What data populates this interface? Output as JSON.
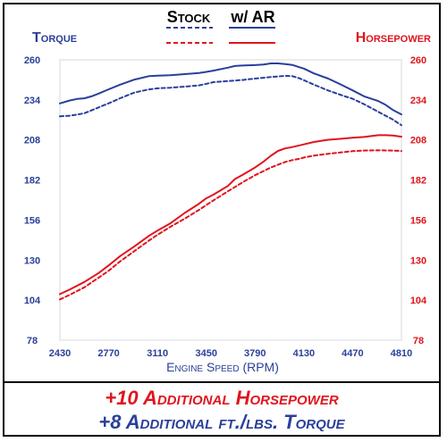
{
  "chart_data": {
    "type": "line",
    "legend": {
      "stock_label": "Stock",
      "ar_label": "w/ AR",
      "placement": "top-center"
    },
    "left_axis": {
      "label": "Torque",
      "ticks": [
        78,
        104,
        130,
        156,
        182,
        208,
        234,
        260
      ],
      "ylim": [
        78,
        260
      ],
      "color": "#2a3f9a"
    },
    "right_axis": {
      "label": "Horsepower",
      "ticks": [
        78,
        104,
        130,
        156,
        182,
        208,
        234,
        260
      ],
      "ylim": [
        78,
        260
      ],
      "color": "#e0141e"
    },
    "x_axis": {
      "label": "Engine Speed (RPM)",
      "ticks": [
        2430,
        2770,
        3110,
        3450,
        3790,
        4130,
        4470,
        4810
      ],
      "xlim": [
        2430,
        4810
      ],
      "color": "#2a3f9a"
    },
    "grid": false,
    "series": [
      {
        "name": "Torque w/ AR",
        "style": "solid",
        "color": "#2a3f9a",
        "x": [
          2430,
          2500,
          2550,
          2600,
          2650,
          2700,
          2770,
          2850,
          2950,
          3050,
          3110,
          3200,
          3300,
          3400,
          3450,
          3500,
          3600,
          3650,
          3700,
          3790,
          3850,
          3900,
          3950,
          4000,
          4050,
          4100,
          4130,
          4200,
          4300,
          4400,
          4470,
          4550,
          4650,
          4700,
          4750,
          4810
        ],
        "values": [
          231.7,
          233.6,
          234.6,
          235.0,
          236.3,
          238.1,
          240.9,
          243.9,
          247.2,
          249.4,
          249.7,
          250.0,
          250.7,
          251.5,
          252.2,
          253.0,
          254.9,
          256.0,
          256.3,
          256.6,
          257.0,
          257.7,
          257.7,
          257.3,
          256.7,
          255.2,
          254.3,
          251.2,
          247.8,
          243.4,
          240.2,
          236.3,
          233.2,
          230.8,
          227.5,
          224.6
        ]
      },
      {
        "name": "Torque Stock",
        "style": "dashed",
        "color": "#2a3f9a",
        "x": [
          2430,
          2500,
          2600,
          2700,
          2770,
          2850,
          2950,
          3050,
          3110,
          3200,
          3300,
          3400,
          3450,
          3500,
          3600,
          3700,
          3790,
          3900,
          4000,
          4050,
          4100,
          4130,
          4200,
          4300,
          4400,
          4470,
          4550,
          4650,
          4750,
          4810
        ],
        "values": [
          223.3,
          223.7,
          225.3,
          229.1,
          231.8,
          235.1,
          238.8,
          240.8,
          241.5,
          241.9,
          242.6,
          243.4,
          244.4,
          245.5,
          246.2,
          246.9,
          247.8,
          248.8,
          249.6,
          249.4,
          248.0,
          246.8,
          243.9,
          240.1,
          236.8,
          234.7,
          231.2,
          226.2,
          221.2,
          217.6
        ]
      },
      {
        "name": "Horsepower w/ AR",
        "style": "solid",
        "color": "#e0141e",
        "x": [
          2430,
          2500,
          2600,
          2700,
          2770,
          2850,
          2950,
          3050,
          3110,
          3200,
          3300,
          3400,
          3450,
          3500,
          3600,
          3650,
          3700,
          3790,
          3850,
          3900,
          3950,
          4000,
          4050,
          4100,
          4130,
          4200,
          4300,
          4400,
          4470,
          4550,
          4600,
          4650,
          4700,
          4750,
          4810
        ],
        "values": [
          107.9,
          111.0,
          115.8,
          121.6,
          126.6,
          132.6,
          139.0,
          145.7,
          149.1,
          153.9,
          160.6,
          166.6,
          170.1,
          172.5,
          178.1,
          182.6,
          185.2,
          190.1,
          194.0,
          197.7,
          200.9,
          202.5,
          203.4,
          204.5,
          205.1,
          206.7,
          208.1,
          208.8,
          209.4,
          209.9,
          210.5,
          211.1,
          211.1,
          210.9,
          210.1
        ]
      },
      {
        "name": "Horsepower Stock",
        "style": "dashed",
        "color": "#e0141e",
        "x": [
          2430,
          2500,
          2600,
          2700,
          2770,
          2850,
          2950,
          3050,
          3110,
          3200,
          3300,
          3400,
          3450,
          3500,
          3600,
          3700,
          3790,
          3900,
          4000,
          4050,
          4100,
          4130,
          4200,
          4300,
          4400,
          4470,
          4550,
          4650,
          4750,
          4810
        ],
        "values": [
          104.5,
          107.5,
          112.3,
          118.6,
          123.1,
          129.2,
          135.9,
          142.6,
          146.4,
          151.6,
          156.9,
          162.6,
          165.7,
          168.7,
          174.6,
          180.3,
          185.1,
          190.1,
          193.7,
          194.9,
          195.8,
          196.6,
          197.8,
          199.0,
          200.0,
          200.7,
          201.1,
          201.3,
          201.1,
          200.8
        ]
      }
    ]
  },
  "footer": {
    "hp_text": "+10 Additional Horsepower",
    "tq_text": "+8 Additional ft./lbs. Torque"
  },
  "colors": {
    "blue": "#2a3f9a",
    "red": "#e0141e",
    "black": "#000000"
  }
}
